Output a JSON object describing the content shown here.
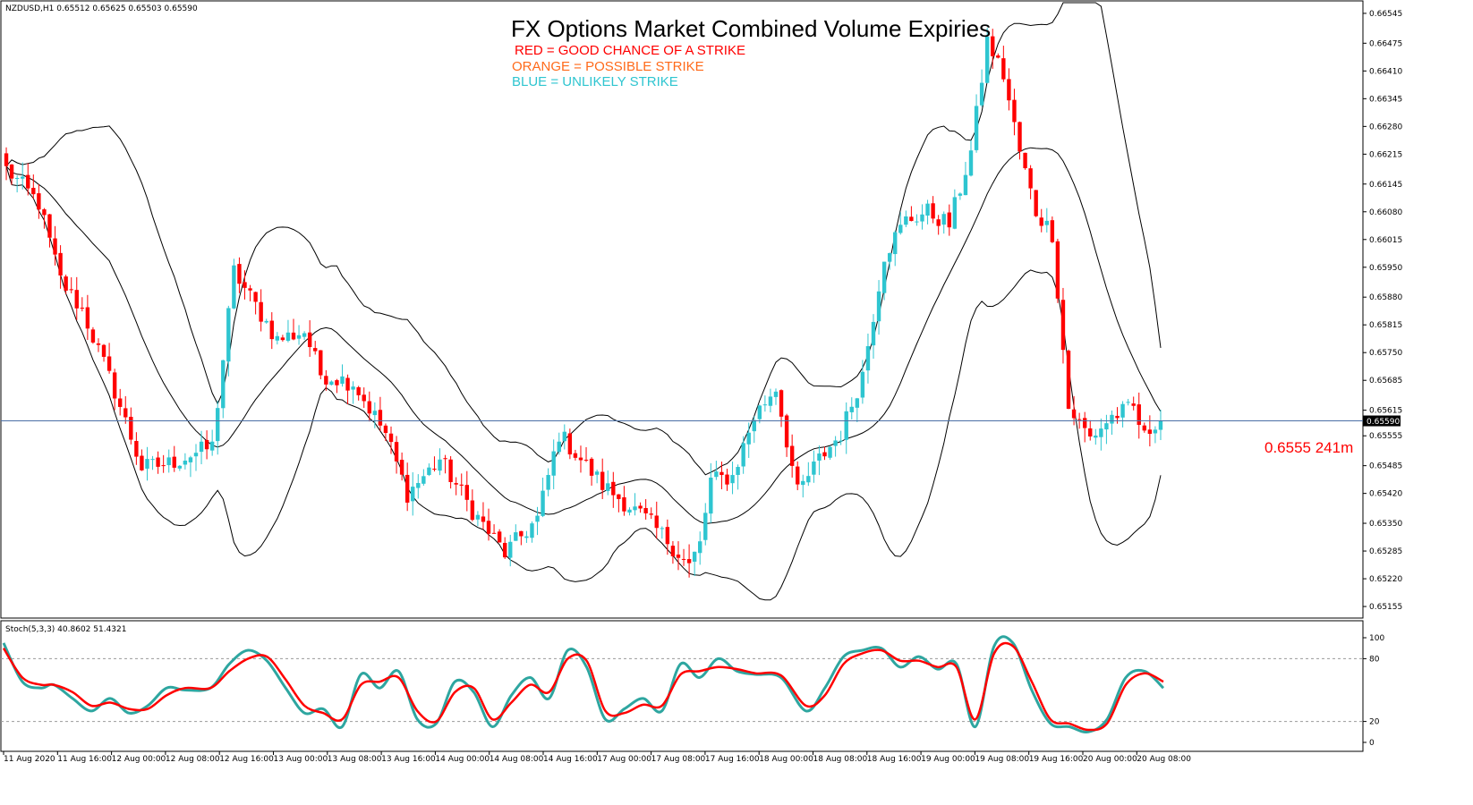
{
  "chart_header": {
    "symbol_info": "NZDUSD,H1  0.65512 0.65625 0.65503 0.65590",
    "stoch_info": "Stoch(5,3,3) 40.8602 51.4321"
  },
  "overlay": {
    "title": "FX Options Market Combined Volume Expiries",
    "legend": [
      {
        "label": "RED = GOOD CHANCE OF A STRIKE",
        "color": "#ff0000"
      },
      {
        "label": "ORANGE = POSSIBLE STRIKE",
        "color": "#ff6a1a"
      },
      {
        "label": "BLUE = UNLIKELY STRIKE",
        "color": "#2ec5d0"
      }
    ],
    "strike_label": "0.6555 241m",
    "strike_color": "#ff0000"
  },
  "colors": {
    "bull": "#2ec5d0",
    "bear": "#ff0000",
    "band": "#000000",
    "price_line": "#4a6fa5",
    "stoch_main": "#2ea6a0",
    "stoch_signal": "#ff0000"
  },
  "chart_data": [
    {
      "type": "candlestick",
      "title": "",
      "current_price": 0.6559,
      "current_price_label": "0.65590",
      "ylim": [
        0.6513,
        0.6657
      ],
      "yticks": [
        "0.66545",
        "0.66475",
        "0.66410",
        "0.66345",
        "0.66280",
        "0.66215",
        "0.66145",
        "0.66080",
        "0.66015",
        "0.65950",
        "0.65880",
        "0.65815",
        "0.65750",
        "0.65685",
        "0.65615",
        "0.65555",
        "0.65485",
        "0.65420",
        "0.65350",
        "0.65285",
        "0.65220",
        "0.65155"
      ],
      "xticks": [
        "11 Aug 2020",
        "11 Aug 16:00",
        "12 Aug 00:00",
        "12 Aug 08:00",
        "12 Aug 16:00",
        "13 Aug 00:00",
        "13 Aug 08:00",
        "13 Aug 16:00",
        "14 Aug 00:00",
        "14 Aug 08:00",
        "14 Aug 16:00",
        "17 Aug 00:00",
        "17 Aug 08:00",
        "17 Aug 16:00",
        "18 Aug 00:00",
        "18 Aug 08:00",
        "18 Aug 16:00",
        "19 Aug 00:00",
        "19 Aug 08:00",
        "19 Aug 16:00",
        "20 Aug 00:00",
        "20 Aug 08:00"
      ],
      "close_path": [
        [
          0,
          0.6618
        ],
        [
          6,
          0.661
        ],
        [
          10,
          0.6592
        ],
        [
          14,
          0.6585
        ],
        [
          20,
          0.6566
        ],
        [
          25,
          0.6548
        ],
        [
          30,
          0.6549
        ],
        [
          38,
          0.6553
        ],
        [
          42,
          0.6594
        ],
        [
          46,
          0.6586
        ],
        [
          50,
          0.6578
        ],
        [
          55,
          0.658
        ],
        [
          58,
          0.657
        ],
        [
          64,
          0.6568
        ],
        [
          70,
          0.6556
        ],
        [
          74,
          0.6542
        ],
        [
          80,
          0.655
        ],
        [
          86,
          0.6538
        ],
        [
          92,
          0.6528
        ],
        [
          98,
          0.6536
        ],
        [
          102,
          0.6556
        ],
        [
          106,
          0.655
        ],
        [
          110,
          0.6544
        ],
        [
          114,
          0.654
        ],
        [
          118,
          0.6536
        ],
        [
          122,
          0.6531
        ],
        [
          126,
          0.6525
        ],
        [
          128,
          0.653
        ],
        [
          130,
          0.6545
        ],
        [
          134,
          0.6546
        ],
        [
          138,
          0.656
        ],
        [
          142,
          0.6567
        ],
        [
          146,
          0.6542
        ],
        [
          150,
          0.655
        ],
        [
          154,
          0.6556
        ],
        [
          158,
          0.657
        ],
        [
          162,
          0.6598
        ],
        [
          166,
          0.6606
        ],
        [
          170,
          0.6608
        ],
        [
          174,
          0.6605
        ],
        [
          178,
          0.6622
        ],
        [
          181,
          0.6648
        ],
        [
          184,
          0.664
        ],
        [
          187,
          0.6622
        ],
        [
          190,
          0.6608
        ],
        [
          193,
          0.6603
        ],
        [
          196,
          0.6562
        ],
        [
          200,
          0.6555
        ],
        [
          204,
          0.656
        ],
        [
          208,
          0.6562
        ],
        [
          210,
          0.6555
        ],
        [
          212,
          0.6559
        ]
      ],
      "bb_period": 20,
      "bb_deviation": 2
    },
    {
      "type": "line",
      "title": "",
      "ylim": [
        0,
        100
      ],
      "yticks": [
        "100",
        "80",
        "20",
        "0"
      ],
      "levels": [
        20,
        80
      ],
      "series": [
        {
          "values": [
            [
              0,
              95
            ],
            [
              3,
              58
            ],
            [
              6,
              52
            ],
            [
              8,
              55
            ],
            [
              11,
              42
            ],
            [
              14,
              30
            ],
            [
              17,
              42
            ],
            [
              20,
              28
            ],
            [
              23,
              35
            ],
            [
              26,
              52
            ],
            [
              29,
              50
            ],
            [
              33,
              52
            ],
            [
              36,
              75
            ],
            [
              39,
              88
            ],
            [
              42,
              78
            ],
            [
              45,
              52
            ],
            [
              48,
              28
            ],
            [
              51,
              32
            ],
            [
              54,
              15
            ],
            [
              57,
              65
            ],
            [
              60,
              52
            ],
            [
              63,
              68
            ],
            [
              66,
              22
            ],
            [
              69,
              18
            ],
            [
              72,
              58
            ],
            [
              75,
              48
            ],
            [
              78,
              15
            ],
            [
              81,
              45
            ],
            [
              84,
              62
            ],
            [
              87,
              42
            ],
            [
              90,
              88
            ],
            [
              93,
              72
            ],
            [
              96,
              22
            ],
            [
              99,
              32
            ],
            [
              102,
              42
            ],
            [
              105,
              30
            ],
            [
              108,
              75
            ],
            [
              111,
              62
            ],
            [
              114,
              80
            ],
            [
              117,
              68
            ],
            [
              120,
              65
            ],
            [
              124,
              62
            ],
            [
              128,
              30
            ],
            [
              131,
              52
            ],
            [
              134,
              82
            ],
            [
              137,
              88
            ],
            [
              140,
              90
            ],
            [
              143,
              72
            ],
            [
              146,
              82
            ],
            [
              149,
              70
            ],
            [
              152,
              75
            ],
            [
              155,
              15
            ],
            [
              158,
              92
            ],
            [
              161,
              95
            ],
            [
              164,
              50
            ],
            [
              167,
              18
            ],
            [
              170,
              15
            ],
            [
              173,
              10
            ],
            [
              176,
              22
            ],
            [
              179,
              62
            ],
            [
              182,
              68
            ],
            [
              185,
              52
            ]
          ]
        },
        {
          "values": [
            [
              0,
              90
            ],
            [
              3,
              62
            ],
            [
              6,
              55
            ],
            [
              8,
              55
            ],
            [
              11,
              48
            ],
            [
              14,
              35
            ],
            [
              17,
              38
            ],
            [
              20,
              32
            ],
            [
              23,
              32
            ],
            [
              26,
              45
            ],
            [
              29,
              52
            ],
            [
              33,
              52
            ],
            [
              36,
              68
            ],
            [
              39,
              80
            ],
            [
              42,
              82
            ],
            [
              45,
              60
            ],
            [
              48,
              35
            ],
            [
              51,
              28
            ],
            [
              54,
              22
            ],
            [
              57,
              55
            ],
            [
              60,
              58
            ],
            [
              63,
              62
            ],
            [
              66,
              30
            ],
            [
              69,
              20
            ],
            [
              72,
              48
            ],
            [
              75,
              52
            ],
            [
              78,
              22
            ],
            [
              81,
              38
            ],
            [
              84,
              55
            ],
            [
              87,
              48
            ],
            [
              90,
              80
            ],
            [
              93,
              78
            ],
            [
              96,
              30
            ],
            [
              99,
              28
            ],
            [
              102,
              36
            ],
            [
              105,
              35
            ],
            [
              108,
              65
            ],
            [
              111,
              68
            ],
            [
              114,
              72
            ],
            [
              117,
              70
            ],
            [
              120,
              66
            ],
            [
              124,
              64
            ],
            [
              128,
              35
            ],
            [
              131,
              45
            ],
            [
              134,
              75
            ],
            [
              137,
              85
            ],
            [
              140,
              88
            ],
            [
              143,
              78
            ],
            [
              146,
              78
            ],
            [
              149,
              72
            ],
            [
              152,
              72
            ],
            [
              155,
              22
            ],
            [
              158,
              85
            ],
            [
              161,
              92
            ],
            [
              164,
              58
            ],
            [
              167,
              22
            ],
            [
              170,
              18
            ],
            [
              173,
              12
            ],
            [
              176,
              18
            ],
            [
              179,
              55
            ],
            [
              182,
              66
            ],
            [
              185,
              58
            ]
          ]
        }
      ]
    }
  ]
}
